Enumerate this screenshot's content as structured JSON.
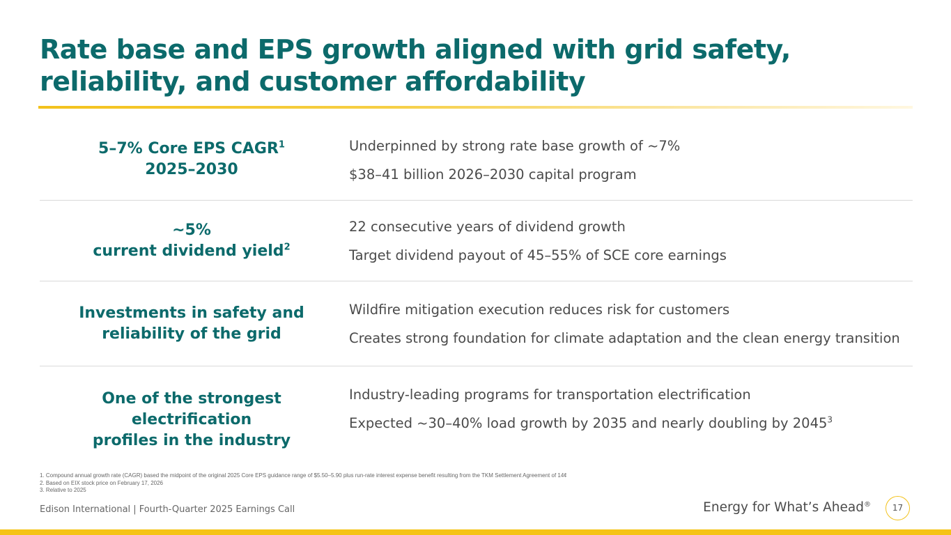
{
  "slide": {
    "title": "Rate base and EPS growth aligned with grid safety, reliability, and customer affordability",
    "page_number": "17"
  },
  "rows": [
    {
      "left_line1": "5–7% Core EPS CAGR",
      "left_line1_sup": "1",
      "left_line2": "2025–2030",
      "left_line2_sup": "",
      "right": [
        {
          "text": "Underpinned by strong rate base growth of ~7%",
          "sup": ""
        },
        {
          "text": "$38–41 billion 2026–2030 capital program",
          "sup": ""
        }
      ]
    },
    {
      "left_line1": "~5%",
      "left_line1_sup": "",
      "left_line2": "current dividend yield",
      "left_line2_sup": "2",
      "right": [
        {
          "text": "22 consecutive years of dividend growth",
          "sup": ""
        },
        {
          "text": "Target dividend payout of 45–55% of SCE core earnings",
          "sup": ""
        }
      ]
    },
    {
      "left_line1": "Investments in safety and",
      "left_line1_sup": "",
      "left_line2": "reliability of the grid",
      "left_line2_sup": "",
      "right": [
        {
          "text": "Wildfire mitigation execution reduces risk for customers",
          "sup": ""
        },
        {
          "text": "Creates strong foundation for climate adaptation and the clean energy transition",
          "sup": ""
        }
      ]
    },
    {
      "left_line1": "One of the strongest electrification",
      "left_line1_sup": "",
      "left_line2": "profiles in the industry",
      "left_line2_sup": "",
      "right": [
        {
          "text": "Industry-leading programs for transportation electrification",
          "sup": ""
        },
        {
          "text": "Expected ~30–40% load growth by 2035 and nearly doubling by 2045",
          "sup": "3"
        }
      ]
    }
  ],
  "footnotes": [
    "1.   Compound annual growth rate (CAGR) based the midpoint of the original 2025 Core EPS guidance range of $5.50–5.90 plus run-rate interest expense benefit resulting from the TKM Settlement Agreement of 14¢",
    "2.   Based on EIX stock price on February 17, 2026",
    "3.   Relative to 2025"
  ],
  "footer": {
    "left": "Edison International |  Fourth-Quarter 2025 Earnings Call",
    "tagline": "Energy for What’s Ahead",
    "tagline_mark": "®"
  },
  "colors": {
    "title": "#0c6a6b",
    "accent": "#f5c316",
    "body_text": "#4a4a4a",
    "separator": "#d9d9d9"
  }
}
